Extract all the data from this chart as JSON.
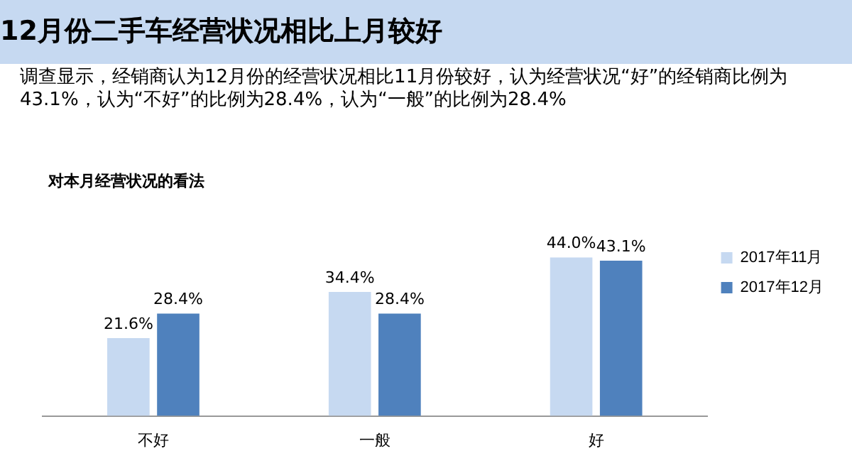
{
  "chart_data": {
    "type": "bar",
    "title": "12月份二手车经营状况相比上月较好",
    "subtitle": "调查显示，经销商认为12月份的经营状况相比11月份较好，认为经营状况“好”的经销商比例为43.1%，认为“不好”的比例为28.4%，认为“一般”的比例为28.4%",
    "annotations": [
      "对本月经营状况的看法"
    ],
    "categories": [
      "不好",
      "一般",
      "好"
    ],
    "series": [
      {
        "name": "2017年11月",
        "color": "#c6d9f1",
        "values": [
          21.6,
          34.4,
          44.0
        ],
        "value_labels": [
          "21.6%",
          "34.4%",
          "44.0%"
        ]
      },
      {
        "name": "2017年12月",
        "color": "#4f81bd",
        "values": [
          28.4,
          28.4,
          43.1
        ],
        "value_labels": [
          "28.4%",
          "28.4%",
          "43.1%"
        ]
      }
    ],
    "legend": "right",
    "grid": false,
    "tick_labels": "x"
  }
}
